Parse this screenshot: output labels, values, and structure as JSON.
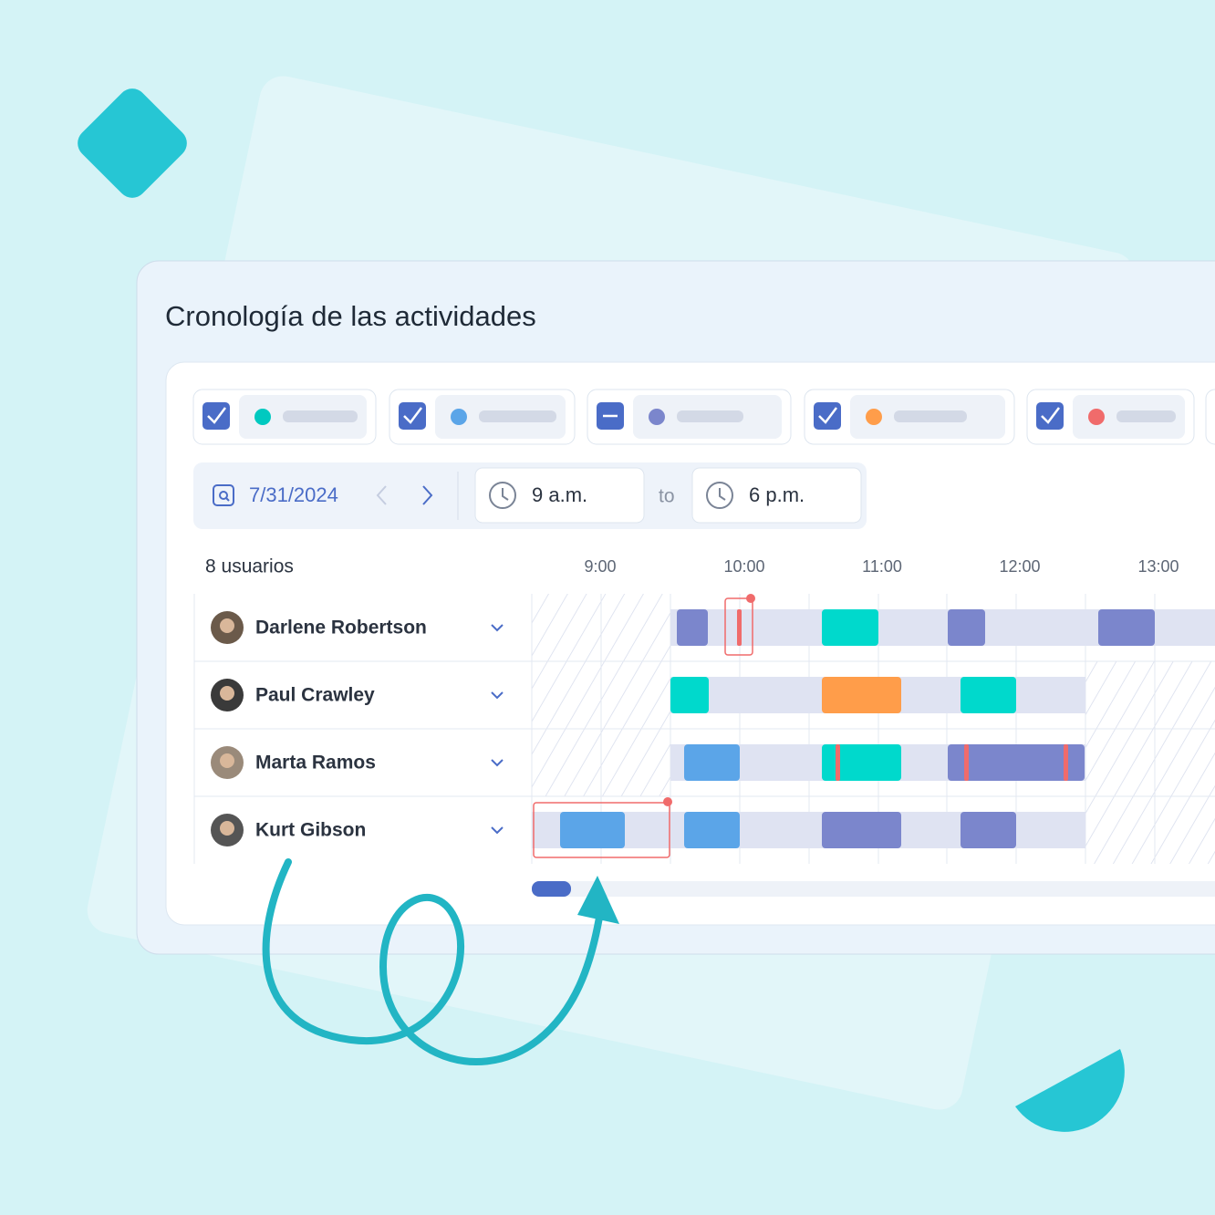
{
  "header": {
    "title": "Cronología de las actividades"
  },
  "toolbar": {
    "date": "7/31/2024",
    "from": "9 a.m.",
    "separator": "to",
    "to": "6 p.m."
  },
  "timeline": {
    "users_count": "8 usuarios",
    "hours": [
      "9:00",
      "10:00",
      "11:00",
      "12:00",
      "13:00"
    ],
    "users": [
      "Darlene Robertson",
      "Paul Crawley",
      "Marta Ramos",
      "Kurt Gibson"
    ]
  }
}
